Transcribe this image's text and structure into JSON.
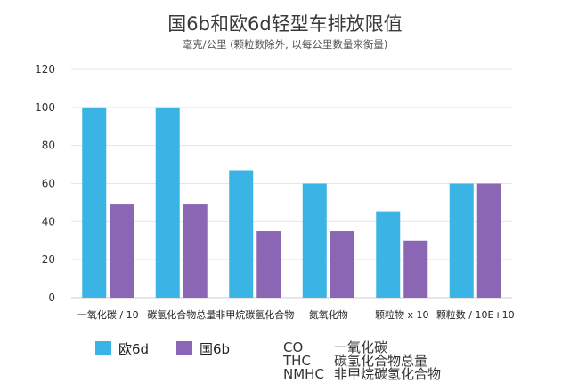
{
  "chart_data": {
    "type": "bar",
    "title": "国6b和欧6d轻型车排放限值",
    "subtitle": "毫克/公里 (颗粒数除外, 以每公里数量来衡量)",
    "categories": [
      "一氧化碳 / 10",
      "碳氢化合物总量",
      "非甲烷碳氢化合物",
      "氮氧化物",
      "颗粒物 x 10",
      "颗粒数 / 10E+10"
    ],
    "series": [
      {
        "name": "欧6d",
        "color": "#3ab4e5",
        "values": [
          100,
          100,
          67,
          60,
          45,
          60
        ]
      },
      {
        "name": "国6b",
        "color": "#8a66b5",
        "values": [
          49,
          49,
          35,
          35,
          30,
          60
        ]
      }
    ],
    "ylim": [
      0,
      120
    ],
    "yticks": [
      "0",
      "20",
      "40",
      "60",
      "80",
      "100",
      "120"
    ],
    "grid": true,
    "legend_position": "bottom-left"
  },
  "abbreviations": [
    {
      "abbr": "CO",
      "meaning": "一氧化碳"
    },
    {
      "abbr": "THC",
      "meaning": "碳氢化合物总量"
    },
    {
      "abbr": "NMHC",
      "meaning": "非甲烷碳氢化合物"
    }
  ]
}
